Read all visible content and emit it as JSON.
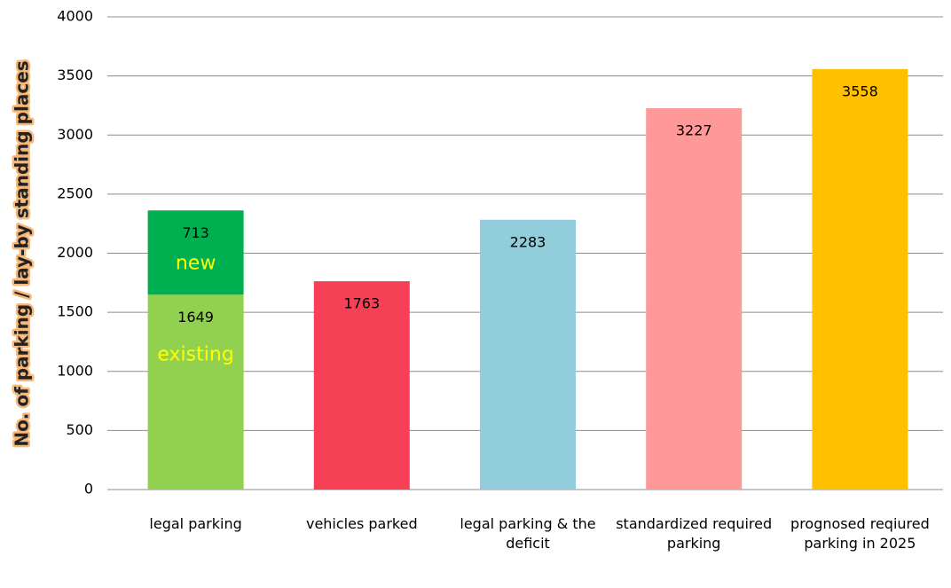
{
  "chart_data": {
    "type": "stacked_bar",
    "y_label": "No. of parking / lay-by standing places",
    "categories": [
      "legal parking",
      "vehicles parked",
      "legal parking & the deficit",
      "standardized required parking",
      "prognosed reqiured parking in 2025"
    ],
    "series": [
      {
        "name": "existing",
        "name_color": "#ffff00",
        "colors": [
          "#92d050",
          "#f64056",
          "#92cddc",
          "#ff9999",
          "#ffc000"
        ],
        "values": [
          1649,
          1763,
          2283,
          3227,
          3558
        ]
      },
      {
        "name": "new",
        "name_color": "#ffff00",
        "colors": [
          "#00b050",
          null,
          null,
          null,
          null
        ],
        "values": [
          713,
          null,
          null,
          null,
          null
        ]
      }
    ],
    "ylim": [
      0,
      4000
    ],
    "yticks": [
      0,
      500,
      1000,
      1500,
      2000,
      2500,
      3000,
      3500,
      4000
    ],
    "grid": true
  }
}
